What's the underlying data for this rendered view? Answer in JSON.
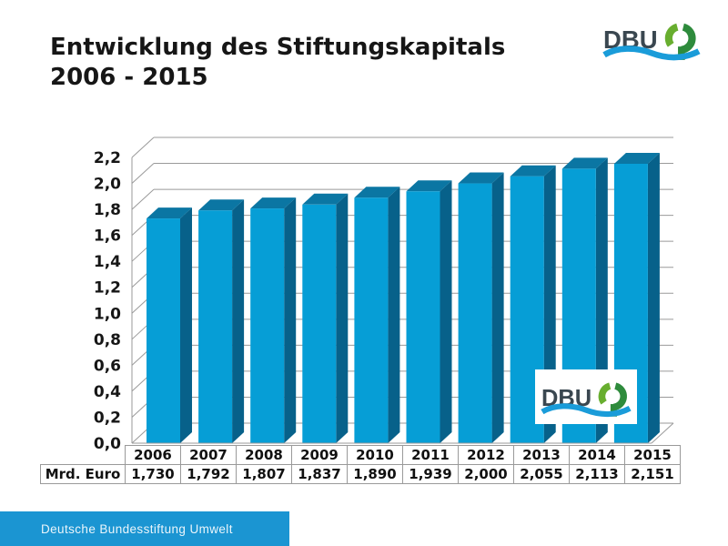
{
  "title": {
    "line1": "Entwicklung des Stiftungskapitals",
    "line2": "2006 - 2015"
  },
  "logo": {
    "text": "DBU",
    "text_color": "#3a4750",
    "green_dark": "#2e8b3c",
    "green_light": "#68ae2f",
    "wave_blue": "#1a9cd9"
  },
  "footer": {
    "text": "Deutsche Bundesstiftung Umwelt",
    "bg": "#1b95d2"
  },
  "chart_data": {
    "type": "bar",
    "style": "3d",
    "title": "Entwicklung des Stiftungskapitals 2006 - 2015",
    "xlabel": "",
    "ylabel": "",
    "units_row_label": "Mrd. Euro",
    "categories": [
      "2006",
      "2007",
      "2008",
      "2009",
      "2010",
      "2011",
      "2012",
      "2013",
      "2014",
      "2015"
    ],
    "values": [
      1.73,
      1.792,
      1.807,
      1.837,
      1.89,
      1.939,
      2.0,
      2.055,
      2.113,
      2.151
    ],
    "value_labels": [
      "1,730",
      "1,792",
      "1,807",
      "1,837",
      "1,890",
      "1,939",
      "2,000",
      "2,055",
      "2,113",
      "2,151"
    ],
    "ylim": [
      0,
      2.2
    ],
    "ytick_step": 0.2,
    "ytick_labels": [
      "0,0",
      "0,2",
      "0,4",
      "0,6",
      "0,8",
      "1,0",
      "1,2",
      "1,4",
      "1,6",
      "1,8",
      "2,0",
      "2,2"
    ],
    "grid": true,
    "legend": "none",
    "colors": {
      "bar_front": "#069ed6",
      "bar_top": "#0b76a3",
      "bar_side": "#07618a",
      "grid": "#9a9a9a"
    }
  }
}
